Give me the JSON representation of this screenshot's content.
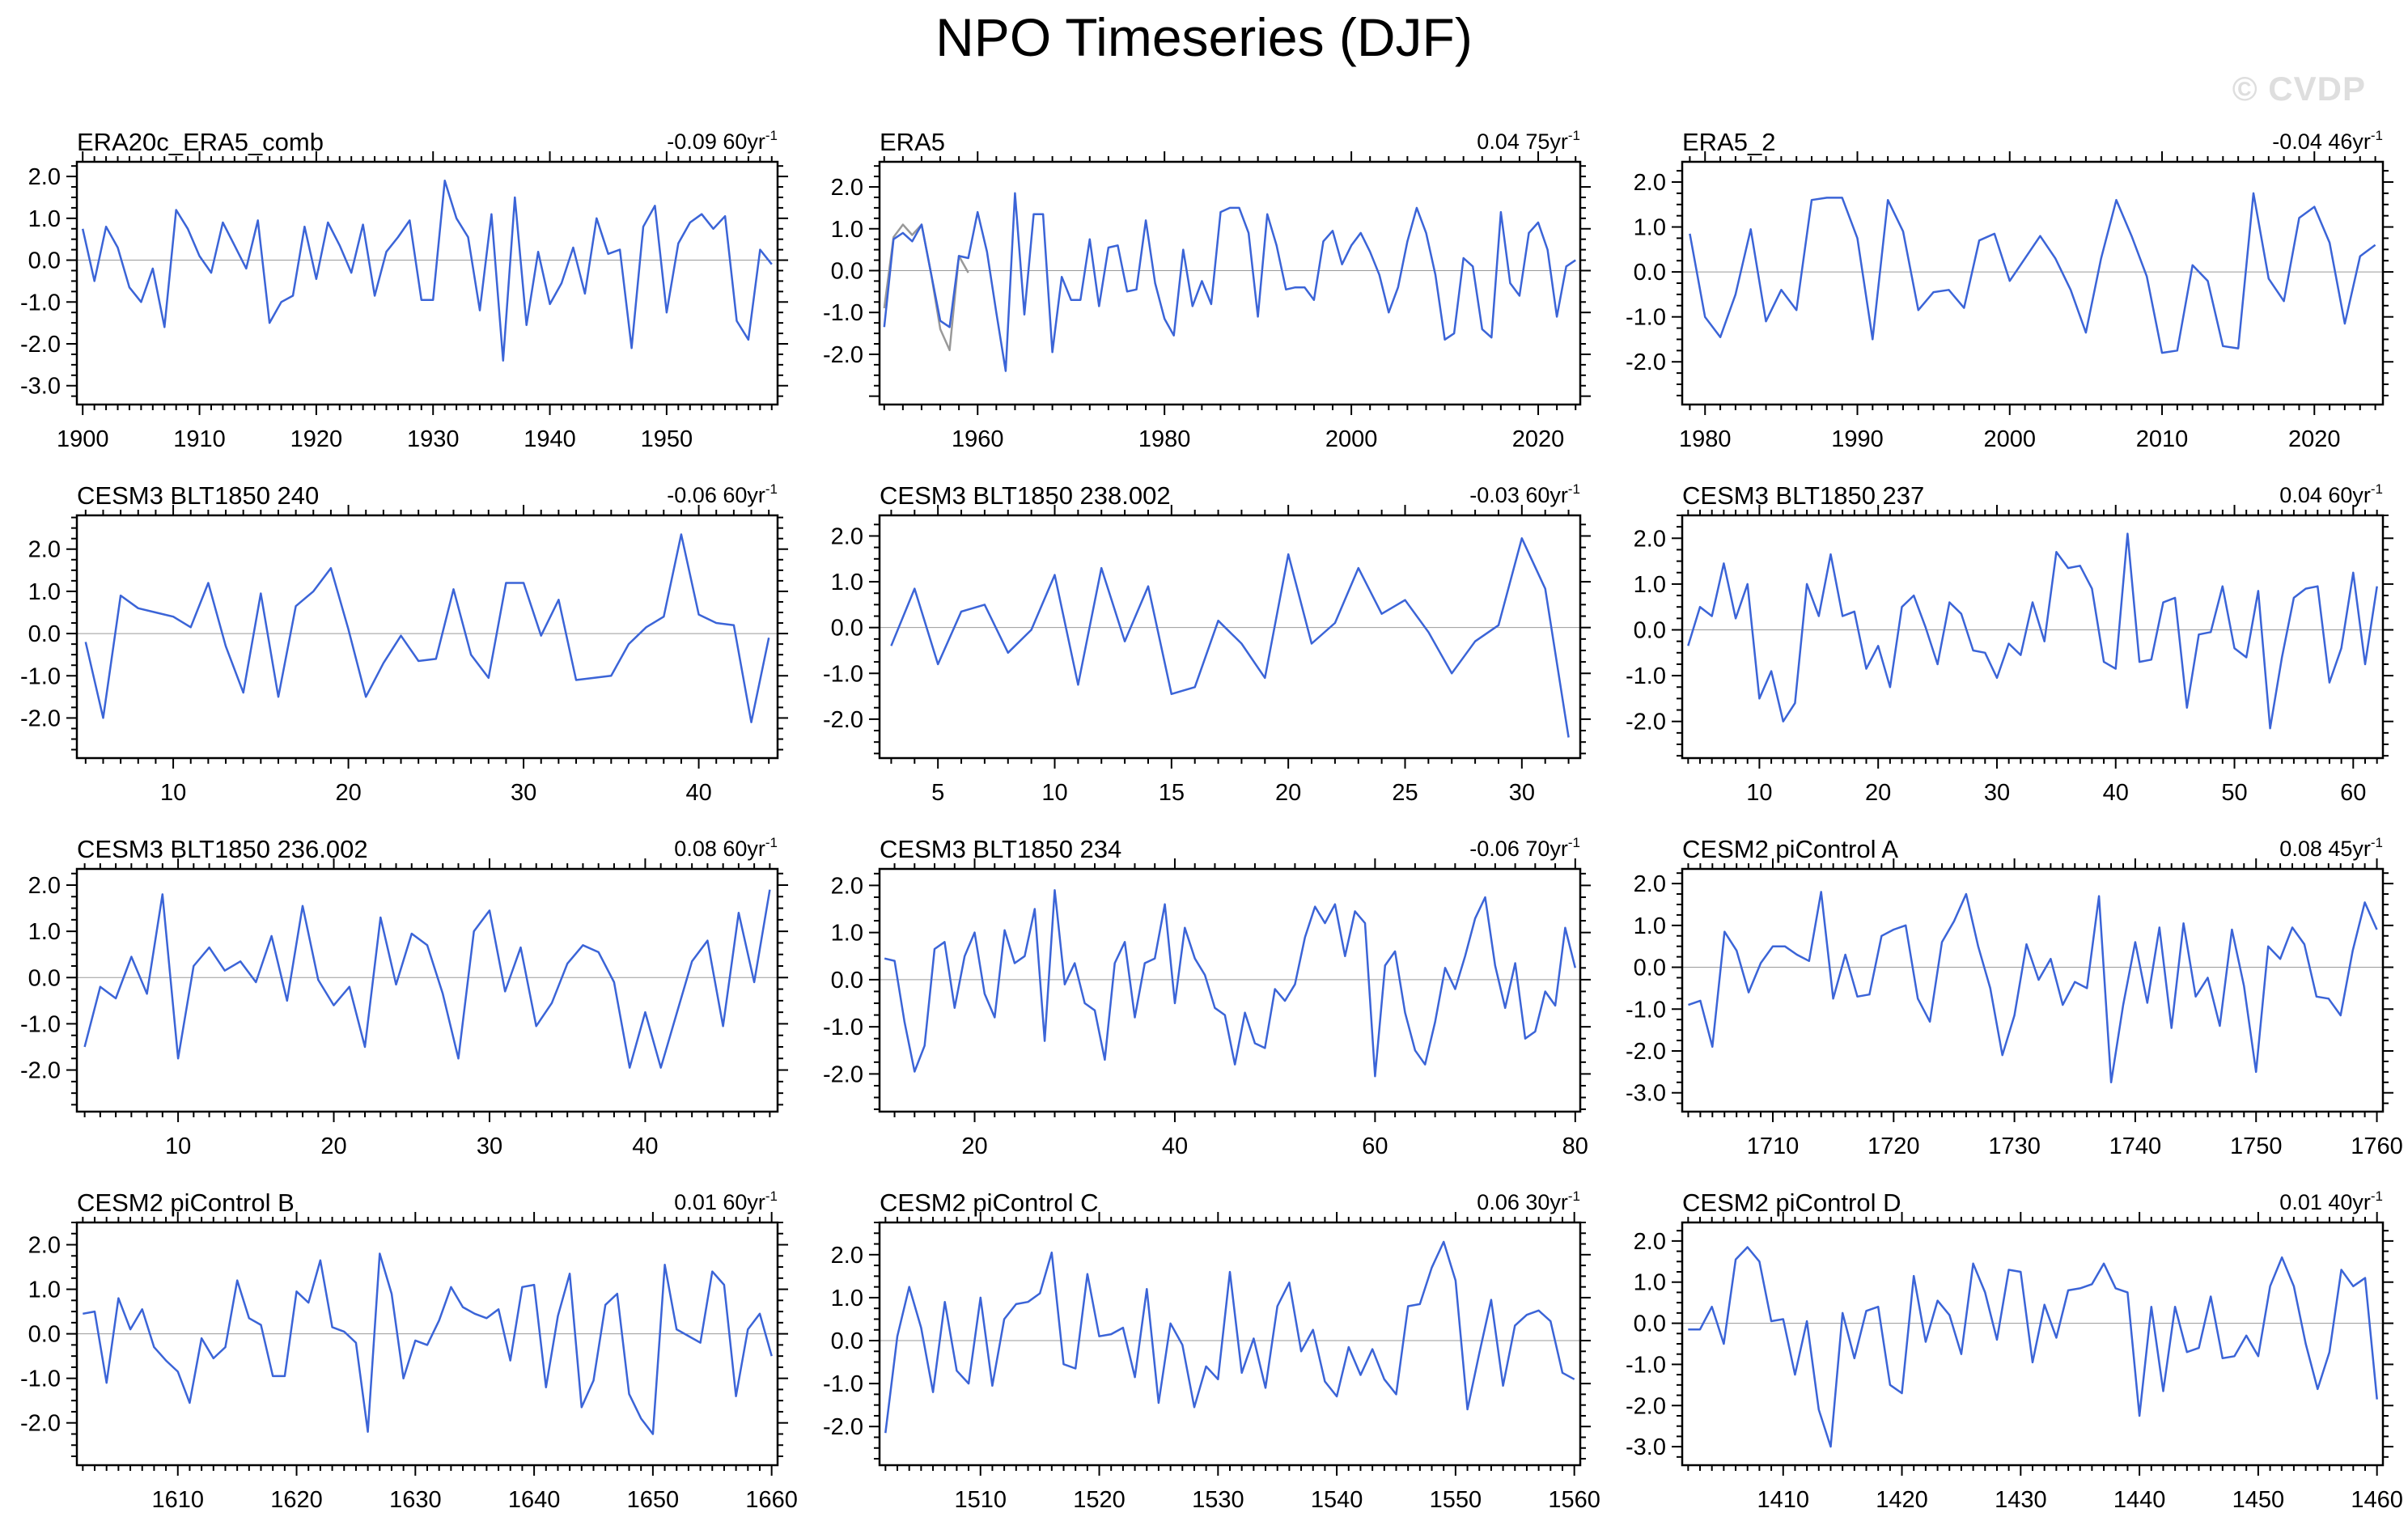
{
  "page_title": "NPO Timeseries (DJF)",
  "watermark": "© CVDP",
  "colors": {
    "line": "#3b64d7",
    "secondary_line": "#999999",
    "zero_line": "#9a9a9a",
    "frame": "#000000",
    "watermark": "#dedede"
  },
  "chart_data": [
    {
      "type": "line",
      "title": "ERA20c_ERA5_comb",
      "trend_value": "-0.09",
      "trend_period": "60yr",
      "trend_sup": "-1",
      "x_start": 1900,
      "xlim": [
        1899.5,
        1959.5
      ],
      "xticks": [
        1900,
        1910,
        1920,
        1930,
        1940,
        1950
      ],
      "x_minor_step": 1,
      "yticks": [
        2.0,
        1.0,
        0.0,
        -1.0,
        -2.0,
        -3.0
      ],
      "ylim": [
        -3.45,
        2.35
      ],
      "values": [
        0.75,
        -0.5,
        0.8,
        0.3,
        -0.65,
        -1.0,
        -0.2,
        -1.6,
        1.2,
        0.75,
        0.1,
        -0.3,
        0.9,
        0.35,
        -0.2,
        0.95,
        -1.5,
        -1.0,
        -0.85,
        0.8,
        -0.45,
        0.9,
        0.35,
        -0.3,
        0.85,
        -0.85,
        0.2,
        0.55,
        0.95,
        -0.95,
        -0.95,
        1.9,
        1.0,
        0.55,
        -1.2,
        1.1,
        -2.4,
        1.5,
        -1.55,
        0.2,
        -1.05,
        -0.55,
        0.3,
        -0.8,
        1.0,
        0.15,
        0.25,
        -2.1,
        0.8,
        1.3,
        -1.25,
        0.4,
        0.9,
        1.1,
        0.75,
        1.05,
        -1.45,
        -1.9,
        0.25,
        -0.1
      ]
    },
    {
      "type": "line",
      "title": "ERA5",
      "trend_value": "0.04",
      "trend_period": "75yr",
      "trend_sup": "-1",
      "x_start": 1950,
      "xlim": [
        1949.5,
        2024.5
      ],
      "xticks": [
        1960,
        1980,
        2000,
        2020
      ],
      "x_minor_step": 2,
      "yticks": [
        2.0,
        1.0,
        0.0,
        -1.0,
        -2.0
      ],
      "ylim": [
        -3.2,
        2.6
      ],
      "values": [
        -1.35,
        0.75,
        0.9,
        0.7,
        1.1,
        -0.05,
        -1.2,
        -1.35,
        0.35,
        0.3,
        1.4,
        0.45,
        -1.0,
        -2.4,
        1.85,
        -1.05,
        1.35,
        1.35,
        -1.95,
        -0.15,
        -0.7,
        -0.7,
        0.75,
        -0.85,
        0.55,
        0.6,
        -0.5,
        -0.45,
        1.2,
        -0.3,
        -1.15,
        -1.55,
        0.5,
        -0.85,
        -0.25,
        -0.8,
        1.4,
        1.5,
        1.5,
        0.9,
        -1.1,
        1.35,
        0.6,
        -0.45,
        -0.4,
        -0.4,
        -0.7,
        0.7,
        0.95,
        0.15,
        0.6,
        0.9,
        0.45,
        -0.1,
        -1.0,
        -0.4,
        0.7,
        1.5,
        0.9,
        -0.1,
        -1.65,
        -1.5,
        0.3,
        0.1,
        -1.4,
        -1.6,
        1.4,
        -0.3,
        -0.6,
        0.9,
        1.15,
        0.5,
        -1.1,
        0.1,
        0.25
      ],
      "secondary": {
        "x_start": 1950,
        "values": [
          -0.9,
          0.8,
          1.1,
          0.85,
          1.1,
          -0.05,
          -1.4,
          -1.9,
          0.35,
          -0.05
        ]
      }
    },
    {
      "type": "line",
      "title": "ERA5_2",
      "trend_value": "-0.04",
      "trend_period": "46yr",
      "trend_sup": "-1",
      "x_start": 1979,
      "xlim": [
        1978.5,
        2024.5
      ],
      "xticks": [
        1980,
        1990,
        2000,
        2010,
        2020
      ],
      "x_minor_step": 1,
      "yticks": [
        2.0,
        1.0,
        0.0,
        -1.0,
        -2.0
      ],
      "ylim": [
        -2.95,
        2.45
      ],
      "values": [
        0.85,
        -1.0,
        -1.45,
        -0.5,
        0.95,
        -1.1,
        -0.4,
        -0.85,
        1.6,
        1.65,
        1.65,
        0.75,
        -1.5,
        1.6,
        0.9,
        -0.85,
        -0.45,
        -0.4,
        -0.8,
        0.7,
        0.85,
        -0.2,
        0.3,
        0.8,
        0.3,
        -0.4,
        -1.35,
        0.3,
        1.6,
        0.8,
        -0.1,
        -1.8,
        -1.75,
        0.15,
        -0.2,
        -1.65,
        -1.7,
        1.75,
        -0.15,
        -0.65,
        1.2,
        1.45,
        0.65,
        -1.15,
        0.35,
        0.6
      ]
    },
    {
      "type": "line",
      "title": "CESM3 BLT1850 240",
      "trend_value": "-0.06",
      "trend_period": "60yr",
      "trend_sup": "-1",
      "x_start": 5,
      "xlim": [
        4.5,
        44.5
      ],
      "xticks": [
        10,
        20,
        30,
        40
      ],
      "x_minor_step": 1,
      "yticks": [
        2.0,
        1.0,
        0.0,
        -1.0,
        -2.0
      ],
      "ylim": [
        -2.95,
        2.8
      ],
      "values": [
        -0.2,
        -2.0,
        0.9,
        0.6,
        0.5,
        0.4,
        0.15,
        1.2,
        -0.3,
        -1.4,
        0.95,
        -1.5,
        0.65,
        1.0,
        1.55,
        0.1,
        -1.5,
        -0.7,
        -0.05,
        -0.65,
        -0.6,
        1.05,
        -0.5,
        -1.05,
        1.2,
        1.2,
        -0.05,
        0.8,
        -1.1,
        -1.05,
        -1.0,
        -0.25,
        0.15,
        0.4,
        2.35,
        0.45,
        0.25,
        0.2,
        -2.1,
        -0.1
      ]
    },
    {
      "type": "line",
      "title": "CESM3 BLT1850 238.002",
      "trend_value": "-0.03",
      "trend_period": "60yr",
      "trend_sup": "-1",
      "x_start": 3,
      "xlim": [
        2.5,
        32.5
      ],
      "xticks": [
        5,
        10,
        15,
        20,
        25,
        30
      ],
      "x_minor_step": 1,
      "yticks": [
        2.0,
        1.0,
        0.0,
        -1.0,
        -2.0
      ],
      "ylim": [
        -2.85,
        2.45
      ],
      "values": [
        -0.4,
        0.85,
        -0.8,
        0.35,
        0.5,
        -0.55,
        -0.05,
        1.15,
        -1.25,
        1.3,
        -0.3,
        0.9,
        -1.45,
        -1.3,
        0.15,
        -0.35,
        -1.1,
        1.6,
        -0.35,
        0.1,
        1.3,
        0.3,
        0.6,
        -0.1,
        -1.0,
        -0.3,
        0.05,
        1.95,
        0.85,
        -2.4
      ]
    },
    {
      "type": "line",
      "title": "CESM3 BLT1850 237",
      "trend_value": "0.04",
      "trend_period": "60yr",
      "trend_sup": "-1",
      "x_start": 4,
      "xlim": [
        3.5,
        62.5
      ],
      "xticks": [
        10,
        20,
        30,
        40,
        50,
        60
      ],
      "x_minor_step": 1,
      "yticks": [
        2.0,
        1.0,
        0.0,
        -1.0,
        -2.0
      ],
      "ylim": [
        -2.8,
        2.5
      ],
      "values": [
        -0.35,
        0.5,
        0.3,
        1.45,
        0.25,
        1.0,
        -1.5,
        -0.9,
        -2.0,
        -1.6,
        1.0,
        0.3,
        1.65,
        0.3,
        0.4,
        -0.85,
        -0.35,
        -1.25,
        0.5,
        0.75,
        0.05,
        -0.75,
        0.6,
        0.35,
        -0.45,
        -0.5,
        -1.05,
        -0.3,
        -0.55,
        0.6,
        -0.25,
        1.7,
        1.35,
        1.4,
        0.9,
        -0.7,
        -0.85,
        2.1,
        -0.7,
        -0.65,
        0.6,
        0.7,
        -1.7,
        -0.1,
        -0.05,
        0.95,
        -0.4,
        -0.6,
        0.85,
        -2.15,
        -0.6,
        0.7,
        0.9,
        0.95,
        -1.15,
        -0.4,
        1.25,
        -0.75,
        0.95
      ]
    },
    {
      "type": "line",
      "title": "CESM3 BLT1850 236.002",
      "trend_value": "0.08",
      "trend_period": "60yr",
      "trend_sup": "-1",
      "x_start": 4,
      "xlim": [
        3.5,
        48.5
      ],
      "xticks": [
        10,
        20,
        30,
        40
      ],
      "x_minor_step": 1,
      "yticks": [
        2.0,
        1.0,
        0.0,
        -1.0,
        -2.0
      ],
      "ylim": [
        -2.9,
        2.35
      ],
      "values": [
        -1.5,
        -0.2,
        -0.45,
        0.45,
        -0.35,
        1.8,
        -1.75,
        0.25,
        0.65,
        0.15,
        0.35,
        -0.1,
        0.9,
        -0.5,
        1.55,
        -0.05,
        -0.6,
        -0.2,
        -1.5,
        1.3,
        -0.15,
        0.95,
        0.7,
        -0.35,
        -1.75,
        1.0,
        1.45,
        -0.3,
        0.65,
        -1.05,
        -0.55,
        0.3,
        0.7,
        0.55,
        -0.1,
        -1.95,
        -0.75,
        -1.95,
        -0.8,
        0.35,
        0.8,
        -1.05,
        1.4,
        -0.1,
        1.9
      ]
    },
    {
      "type": "line",
      "title": "CESM3 BLT1850 234",
      "trend_value": "-0.06",
      "trend_period": "70yr",
      "trend_sup": "-1",
      "x_start": 11,
      "xlim": [
        10.5,
        80.5
      ],
      "xticks": [
        20,
        40,
        60,
        80
      ],
      "x_minor_step": 2,
      "yticks": [
        2.0,
        1.0,
        0.0,
        -1.0,
        -2.0
      ],
      "ylim": [
        -2.8,
        2.35
      ],
      "values": [
        0.45,
        0.4,
        -0.9,
        -1.95,
        -1.4,
        0.65,
        0.8,
        -0.6,
        0.5,
        1.0,
        -0.3,
        -0.8,
        1.05,
        0.35,
        0.5,
        1.5,
        -1.3,
        1.9,
        -0.1,
        0.35,
        -0.5,
        -0.65,
        -1.7,
        0.35,
        0.8,
        -0.8,
        0.35,
        0.45,
        1.6,
        -0.5,
        1.1,
        0.45,
        0.1,
        -0.6,
        -0.75,
        -1.8,
        -0.7,
        -1.35,
        -1.45,
        -0.2,
        -0.45,
        -0.1,
        0.9,
        1.55,
        1.2,
        1.6,
        0.5,
        1.45,
        1.2,
        -2.05,
        0.3,
        0.6,
        -0.7,
        -1.5,
        -1.8,
        -0.9,
        0.25,
        -0.2,
        0.5,
        1.3,
        1.75,
        0.3,
        -0.6,
        0.35,
        -1.25,
        -1.1,
        -0.25,
        -0.55,
        1.1,
        0.25
      ]
    },
    {
      "type": "line",
      "title": "CESM2 piControl A",
      "trend_value": "0.08",
      "trend_period": "45yr",
      "trend_sup": "-1",
      "x_start": 1703,
      "xlim": [
        1702.5,
        1760.5
      ],
      "xticks": [
        1710,
        1720,
        1730,
        1740,
        1750,
        1760
      ],
      "x_minor_step": 1,
      "yticks": [
        2.0,
        1.0,
        0.0,
        -1.0,
        -2.0,
        -3.0
      ],
      "ylim": [
        -3.45,
        2.35
      ],
      "values": [
        -0.9,
        -0.8,
        -1.9,
        0.85,
        0.4,
        -0.6,
        0.1,
        0.5,
        0.5,
        0.3,
        0.15,
        1.8,
        -0.75,
        0.3,
        -0.7,
        -0.65,
        0.75,
        0.9,
        1.0,
        -0.75,
        -1.3,
        0.6,
        1.1,
        1.75,
        0.5,
        -0.5,
        -2.1,
        -1.15,
        0.55,
        -0.3,
        0.2,
        -0.9,
        -0.35,
        -0.5,
        1.7,
        -2.75,
        -0.9,
        0.6,
        -0.85,
        0.95,
        -1.45,
        1.05,
        -0.7,
        -0.25,
        -1.4,
        0.9,
        -0.45,
        -2.5,
        0.5,
        0.2,
        0.95,
        0.55,
        -0.7,
        -0.75,
        -1.15,
        0.4,
        1.55,
        0.9
      ]
    },
    {
      "type": "line",
      "title": "CESM2 piControl B",
      "trend_value": "0.01",
      "trend_period": "60yr",
      "trend_sup": "-1",
      "x_start": 1602,
      "xlim": [
        1601.5,
        1660.5
      ],
      "xticks": [
        1610,
        1620,
        1630,
        1640,
        1650,
        1660
      ],
      "x_minor_step": 1,
      "yticks": [
        2.0,
        1.0,
        0.0,
        -1.0,
        -2.0
      ],
      "ylim": [
        -2.95,
        2.5
      ],
      "values": [
        0.45,
        0.5,
        -1.1,
        0.8,
        0.1,
        0.55,
        -0.3,
        -0.6,
        -0.85,
        -1.55,
        -0.1,
        -0.55,
        -0.3,
        1.2,
        0.35,
        0.2,
        -0.95,
        -0.95,
        0.95,
        0.7,
        1.65,
        0.15,
        0.05,
        -0.2,
        -2.2,
        1.8,
        0.9,
        -1.0,
        -0.15,
        -0.25,
        0.3,
        1.05,
        0.6,
        0.45,
        0.35,
        0.55,
        -0.6,
        1.05,
        1.1,
        -1.2,
        0.4,
        1.35,
        -1.65,
        -1.05,
        0.65,
        0.9,
        -1.35,
        -1.9,
        -2.25,
        1.55,
        0.1,
        -0.05,
        -0.2,
        1.4,
        1.1,
        -1.4,
        0.1,
        0.45,
        -0.5
      ]
    },
    {
      "type": "line",
      "title": "CESM2 piControl C",
      "trend_value": "0.06",
      "trend_period": "30yr",
      "trend_sup": "-1",
      "x_start": 1502,
      "xlim": [
        1501.5,
        1560.5
      ],
      "xticks": [
        1510,
        1520,
        1530,
        1540,
        1550,
        1560
      ],
      "x_minor_step": 1,
      "yticks": [
        2.0,
        1.0,
        0.0,
        -1.0,
        -2.0
      ],
      "ylim": [
        -2.9,
        2.75
      ],
      "values": [
        -2.15,
        0.1,
        1.25,
        0.3,
        -1.2,
        0.9,
        -0.7,
        -1.0,
        1.0,
        -1.05,
        0.5,
        0.85,
        0.9,
        1.1,
        2.05,
        -0.55,
        -0.65,
        1.55,
        0.1,
        0.15,
        0.3,
        -0.85,
        1.2,
        -1.45,
        0.4,
        -0.1,
        -1.55,
        -0.6,
        -0.9,
        1.6,
        -0.75,
        0.05,
        -1.1,
        0.8,
        1.35,
        -0.25,
        0.25,
        -0.95,
        -1.3,
        -0.15,
        -0.8,
        -0.2,
        -0.9,
        -1.25,
        0.8,
        0.85,
        1.7,
        2.3,
        1.4,
        -1.6,
        -0.3,
        0.95,
        -1.05,
        0.35,
        0.6,
        0.7,
        0.45,
        -0.75,
        -0.9
      ]
    },
    {
      "type": "line",
      "title": "CESM2 piControl D",
      "trend_value": "0.01",
      "trend_period": "40yr",
      "trend_sup": "-1",
      "x_start": 1402,
      "xlim": [
        1401.5,
        1460.5
      ],
      "xticks": [
        1410,
        1420,
        1430,
        1440,
        1450,
        1460
      ],
      "x_minor_step": 1,
      "yticks": [
        2.0,
        1.0,
        0.0,
        -1.0,
        -2.0,
        -3.0
      ],
      "ylim": [
        -3.45,
        2.45
      ],
      "values": [
        -0.15,
        -0.15,
        0.4,
        -0.5,
        1.55,
        1.85,
        1.5,
        0.05,
        0.1,
        -1.25,
        0.05,
        -2.1,
        -3.0,
        0.25,
        -0.85,
        0.3,
        0.4,
        -1.5,
        -1.7,
        1.15,
        -0.45,
        0.55,
        0.2,
        -0.75,
        1.45,
        0.75,
        -0.4,
        1.3,
        1.25,
        -0.95,
        0.45,
        -0.35,
        0.8,
        0.85,
        0.95,
        1.45,
        0.85,
        0.75,
        -2.25,
        0.4,
        -1.65,
        0.4,
        -0.7,
        -0.6,
        0.65,
        -0.85,
        -0.8,
        -0.3,
        -0.8,
        0.9,
        1.6,
        0.9,
        -0.5,
        -1.6,
        -0.7,
        1.3,
        0.9,
        1.1,
        -1.85
      ]
    }
  ]
}
